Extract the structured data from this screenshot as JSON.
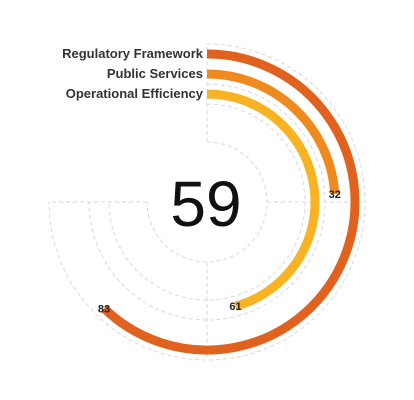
{
  "chart_data": {
    "type": "radial-bar",
    "center_value": "59",
    "start_angle_deg": 0,
    "full_angle_deg": 270,
    "max_value": 100,
    "series": [
      {
        "name": "Regulatory Framework",
        "value": 83,
        "label": "83",
        "color": "#e0621e"
      },
      {
        "name": "Public Services",
        "value": 32,
        "label": "32",
        "color": "#ef8a1f"
      },
      {
        "name": "Operational Efficiency",
        "value": 61,
        "label": "61",
        "color": "#f7b322"
      }
    ],
    "grid": true
  }
}
